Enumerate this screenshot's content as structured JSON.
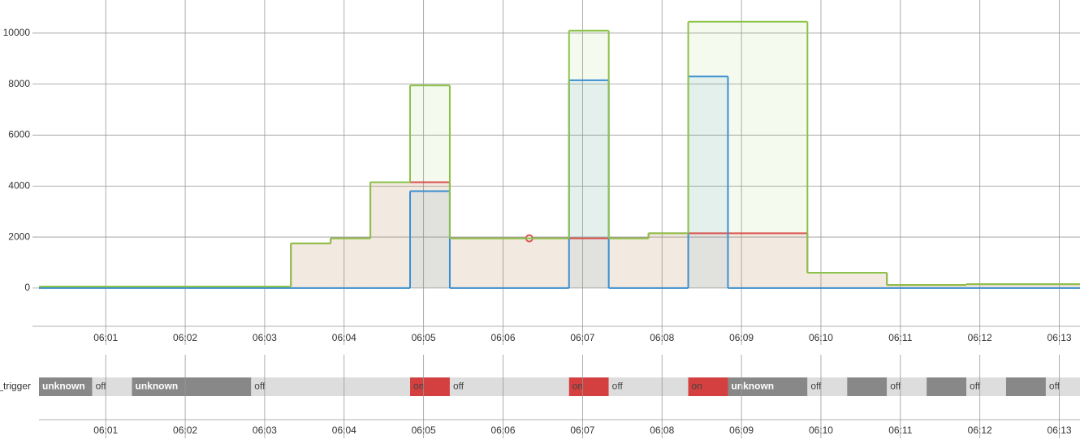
{
  "chart_data": [
    {
      "type": "step-area",
      "x": [
        0.16,
        3.33,
        3.83,
        4.33,
        4.83,
        5.33,
        6.83,
        7.33,
        7.83,
        8.33,
        8.83,
        9.83,
        10.83,
        11.83
      ],
      "series": [
        {
          "color": "#8bc34a",
          "values": [
            60,
            1750,
            1950,
            4150,
            7950,
            1950,
            10100,
            1950,
            2150,
            10450,
            10450,
            600,
            120,
            150
          ]
        },
        {
          "color": "#d9534f",
          "values": [
            60,
            1750,
            1950,
            4150,
            4150,
            1950,
            1950,
            1950,
            2150,
            2150,
            2150,
            600,
            120,
            150
          ],
          "points": [
            {
              "x": 6.33,
              "y": 1950
            }
          ]
        },
        {
          "color": "#3b8fd0",
          "values": [
            0,
            0,
            0,
            0,
            3800,
            0,
            8150,
            0,
            0,
            8300,
            0,
            0,
            0,
            0
          ]
        }
      ],
      "xlim": [
        0.16,
        13.26
      ],
      "xticks": [
        {
          "value": 1,
          "label": "06:01"
        },
        {
          "value": 2,
          "label": "06:02"
        },
        {
          "value": 3,
          "label": "06:03"
        },
        {
          "value": 4,
          "label": "06:04"
        },
        {
          "value": 5,
          "label": "06:05"
        },
        {
          "value": 6,
          "label": "06:06"
        },
        {
          "value": 7,
          "label": "06:07"
        },
        {
          "value": 8,
          "label": "06:08"
        },
        {
          "value": 9,
          "label": "06:09"
        },
        {
          "value": 10,
          "label": "06:10"
        },
        {
          "value": 11,
          "label": "06:11"
        },
        {
          "value": 12,
          "label": "06:12"
        },
        {
          "value": 13,
          "label": "06:13"
        }
      ],
      "ylim": [
        -1500,
        11300
      ],
      "yticks": [
        0,
        2000,
        4000,
        6000,
        8000,
        10000
      ],
      "grid": true
    },
    {
      "type": "timeline",
      "label": "_trigger",
      "segments": [
        {
          "start": 0.16,
          "end": 0.83,
          "state": "unknown",
          "color": "#888888"
        },
        {
          "start": 0.83,
          "end": 1.33,
          "state": "off",
          "color": "#dddddd"
        },
        {
          "start": 1.33,
          "end": 2.83,
          "state": "unknown",
          "color": "#888888"
        },
        {
          "start": 2.83,
          "end": 4.83,
          "state": "off",
          "color": "#dddddd"
        },
        {
          "start": 4.83,
          "end": 5.33,
          "state": "on",
          "color": "#d43f3f"
        },
        {
          "start": 5.33,
          "end": 6.83,
          "state": "off",
          "color": "#dddddd"
        },
        {
          "start": 6.83,
          "end": 7.33,
          "state": "on",
          "color": "#d43f3f"
        },
        {
          "start": 7.33,
          "end": 8.33,
          "state": "off",
          "color": "#dddddd"
        },
        {
          "start": 8.33,
          "end": 8.83,
          "state": "on",
          "color": "#d43f3f"
        },
        {
          "start": 8.83,
          "end": 9.83,
          "state": "unknown",
          "color": "#888888"
        },
        {
          "start": 9.83,
          "end": 10.33,
          "state": "off",
          "color": "#dddddd"
        },
        {
          "start": 10.33,
          "end": 10.83,
          "state": null,
          "color": "#888888"
        },
        {
          "start": 10.83,
          "end": 11.33,
          "state": "off",
          "color": "#dddddd"
        },
        {
          "start": 11.33,
          "end": 11.83,
          "state": null,
          "color": "#888888"
        },
        {
          "start": 11.83,
          "end": 12.33,
          "state": "off",
          "color": "#dddddd"
        },
        {
          "start": 12.33,
          "end": 12.83,
          "state": null,
          "color": "#888888"
        },
        {
          "start": 12.83,
          "end": 13.26,
          "state": "off",
          "color": "#dddddd"
        }
      ],
      "xlim": [
        0.16,
        13.26
      ],
      "xticks": [
        {
          "value": 1,
          "label": "06:01"
        },
        {
          "value": 2,
          "label": "06:02"
        },
        {
          "value": 3,
          "label": "06:03"
        },
        {
          "value": 4,
          "label": "06:04"
        },
        {
          "value": 5,
          "label": "06:05"
        },
        {
          "value": 6,
          "label": "06:06"
        },
        {
          "value": 7,
          "label": "06:07"
        },
        {
          "value": 8,
          "label": "06:08"
        },
        {
          "value": 9,
          "label": "06:09"
        },
        {
          "value": 10,
          "label": "06:10"
        },
        {
          "value": 11,
          "label": "06:11"
        },
        {
          "value": 12,
          "label": "06:12"
        },
        {
          "value": 13,
          "label": "06:13"
        }
      ],
      "grid": true
    }
  ]
}
